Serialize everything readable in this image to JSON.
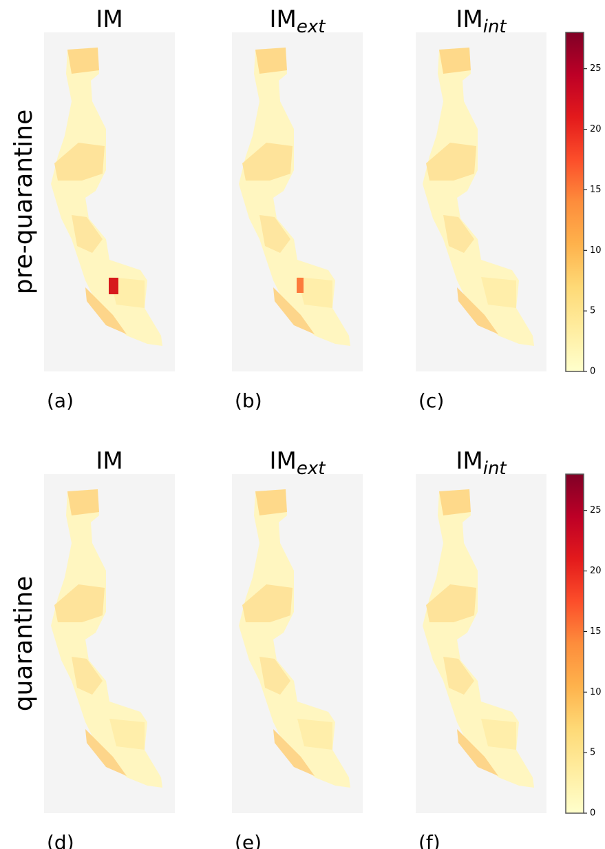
{
  "rows": [
    {
      "label": "pre-quarantine",
      "panels": [
        {
          "title": "IM",
          "tag": "(a)"
        },
        {
          "title": "IM",
          "subscript": "ext",
          "tag": "(b)"
        },
        {
          "title": "IM",
          "subscript": "int",
          "tag": "(c)"
        }
      ]
    },
    {
      "label": "quarantine",
      "panels": [
        {
          "title": "IM",
          "tag": "(d)"
        },
        {
          "title": "IM",
          "subscript": "ext",
          "tag": "(e)"
        },
        {
          "title": "IM",
          "subscript": "int",
          "tag": "(f)"
        }
      ]
    }
  ],
  "colorbar": {
    "lim": [
      0,
      28
    ],
    "ticks": [
      0,
      5,
      10,
      15,
      20,
      25
    ]
  }
}
